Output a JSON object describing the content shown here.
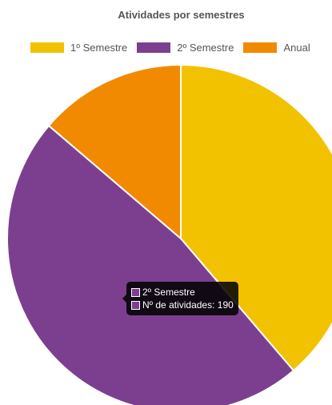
{
  "chart_data": {
    "type": "pie",
    "title": "Atividades por semestres",
    "categories": [
      "1º Semestre",
      "2º Semestre",
      "Anual"
    ],
    "values": [
      155,
      190,
      55
    ],
    "colors": [
      "#f2c200",
      "#7c3f8f",
      "#f18a00"
    ],
    "legend_position": "top",
    "tooltip": {
      "category": "2º Semestre",
      "label": "Nº de atividades: 190"
    }
  }
}
